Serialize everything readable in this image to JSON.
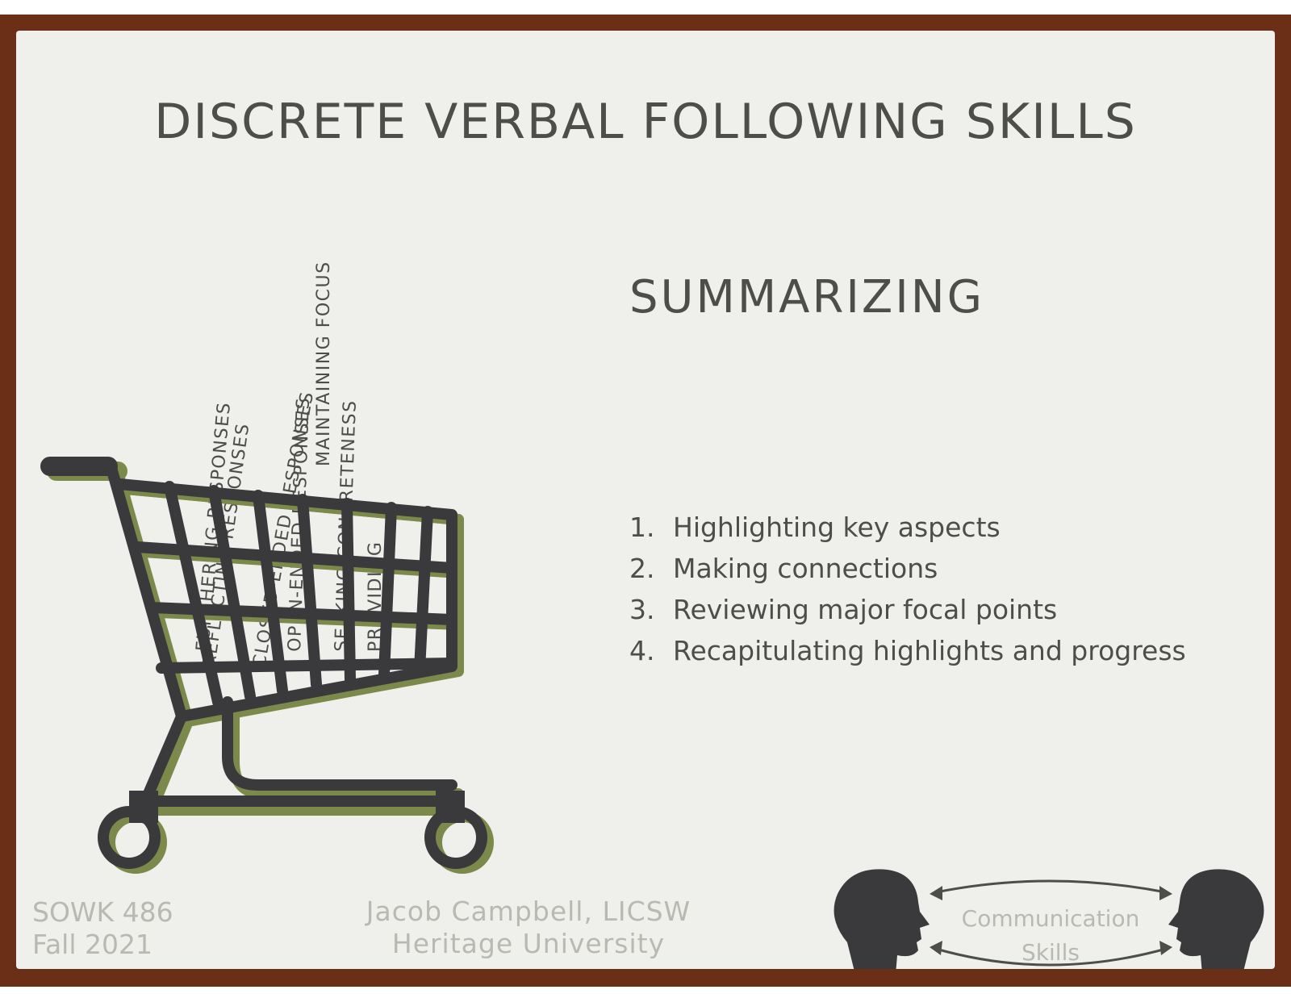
{
  "slide": {
    "title": "DISCRETE VERBAL FOLLOWING SKILLS",
    "subtitle": "SUMMARIZING",
    "points": [
      {
        "num": "1.",
        "text": "Highlighting key aspects"
      },
      {
        "num": "2.",
        "text": "Making connections"
      },
      {
        "num": "3.",
        "text": "Reviewing major focal points"
      },
      {
        "num": "4.",
        "text": "Recapitulating highlights and  progress"
      }
    ],
    "cart_labels": [
      "FURTHERING RESPONSES",
      "REFLECTING RESPONSES",
      "CLOSED-ENDED RESPONSES",
      "OPEN-ENDED RESPONSES",
      "SEEKING CONCRETENESS",
      "MAINTAINING FOCUS",
      "PROVIDING"
    ],
    "footer": {
      "course": "SOWK 486",
      "term": "Fall 2021",
      "instructor": "Jacob Campbell, LICSW",
      "institution": "Heritage University",
      "graphic_label_1": "Communication",
      "graphic_label_2": "Skills"
    }
  },
  "colors": {
    "frame": "#6b2f18",
    "slide_bg": "#efefec",
    "text": "#4d4d4a",
    "cart": "#3a3a3d",
    "cart_shadow": "#7b8a4a",
    "footer_text": "#b9b9b3"
  }
}
